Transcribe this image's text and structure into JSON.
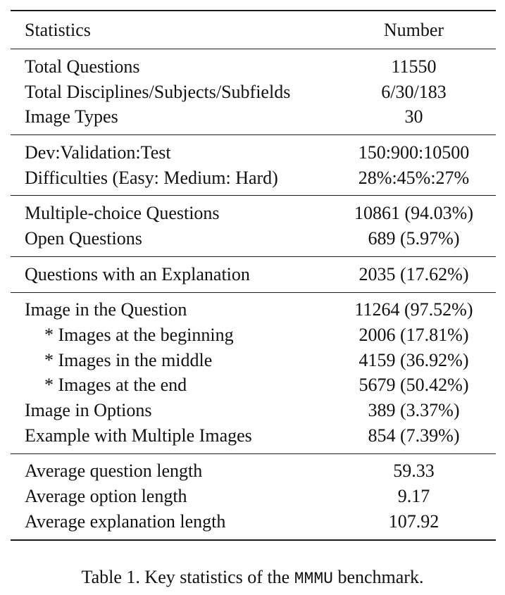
{
  "table": {
    "header": {
      "label": "Statistics",
      "value": "Number"
    },
    "groups": [
      {
        "rows": [
          {
            "label": "Total Questions",
            "value": "11550"
          },
          {
            "label": "Total Disciplines/Subjects/Subfields",
            "value": "6/30/183"
          },
          {
            "label": "Image Types",
            "value": "30"
          }
        ]
      },
      {
        "rows": [
          {
            "label": "Dev:Validation:Test",
            "value": "150:900:10500"
          },
          {
            "label": "Difficulties (Easy: Medium: Hard)",
            "value": "28%:45%:27%"
          }
        ]
      },
      {
        "rows": [
          {
            "label": "Multiple-choice Questions",
            "value": "10861 (94.03%)"
          },
          {
            "label": "Open Questions",
            "value": "689 (5.97%)"
          }
        ]
      },
      {
        "rows": [
          {
            "label": "Questions with an Explanation",
            "value": "2035 (17.62%)"
          }
        ]
      },
      {
        "rows": [
          {
            "label": "Image in the Question",
            "value": "11264 (97.52%)"
          },
          {
            "label": "* Images at the beginning",
            "value": "2006 (17.81%)"
          },
          {
            "label": "* Images in the middle",
            "value": "4159 (36.92%)"
          },
          {
            "label": "* Images at the end",
            "value": "5679 (50.42%)"
          },
          {
            "label": "Image in Options",
            "value": "389 (3.37%)"
          },
          {
            "label": "Example with Multiple Images",
            "value": "854 (7.39%)"
          }
        ]
      },
      {
        "rows": [
          {
            "label": "Average question length",
            "value": "59.33"
          },
          {
            "label": "Average option length",
            "value": "9.17"
          },
          {
            "label": "Average explanation length",
            "value": "107.92"
          }
        ]
      }
    ]
  },
  "caption": {
    "prefix": "Table 1. Key statistics of the ",
    "code": "MMMU",
    "suffix": " benchmark."
  }
}
